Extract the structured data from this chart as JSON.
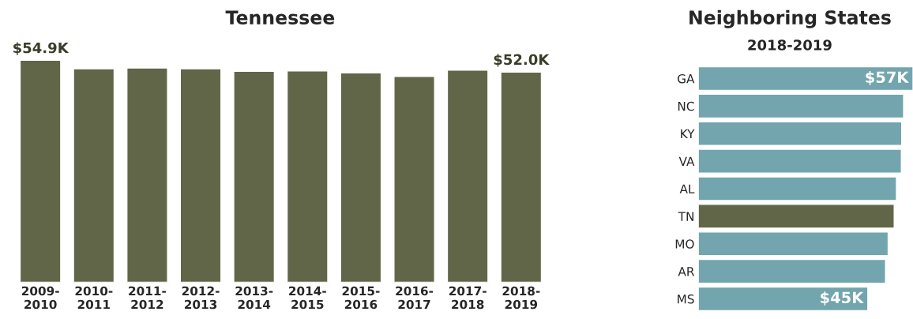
{
  "chart_data": [
    {
      "type": "bar",
      "title": "Tennessee",
      "categories": [
        "2009-\n2010",
        "2010-\n2011",
        "2011-\n2012",
        "2012-\n2013",
        "2013-\n2014",
        "2014-\n2015",
        "2015-\n2016",
        "2016-\n2017",
        "2017-\n2018",
        "2018-\n2019"
      ],
      "values": [
        54.9,
        52.8,
        53.0,
        52.8,
        52.2,
        52.3,
        51.8,
        50.9,
        52.5,
        52.0
      ],
      "value_labels": [
        "$54.9K",
        null,
        null,
        null,
        null,
        null,
        null,
        null,
        null,
        "$52.0K"
      ],
      "color": "#606647",
      "tick_labels": "x",
      "grid": false,
      "legend": false
    },
    {
      "type": "bar",
      "orientation": "horizontal",
      "title": "Neighboring States",
      "subtitle": "2018-2019",
      "categories": [
        "GA",
        "NC",
        "KY",
        "VA",
        "AL",
        "TN",
        "MO",
        "AR",
        "MS"
      ],
      "values": [
        57,
        54.5,
        54.0,
        53.9,
        52.6,
        52.0,
        50.4,
        49.7,
        45
      ],
      "value_labels": [
        "$57K",
        null,
        null,
        null,
        null,
        null,
        null,
        null,
        "$45K"
      ],
      "colors": [
        "#72a5ae",
        "#72a5ae",
        "#72a5ae",
        "#72a5ae",
        "#72a5ae",
        "#606647",
        "#72a5ae",
        "#72a5ae",
        "#72a5ae"
      ],
      "tick_labels": "y",
      "grid": false,
      "legend": false
    }
  ]
}
